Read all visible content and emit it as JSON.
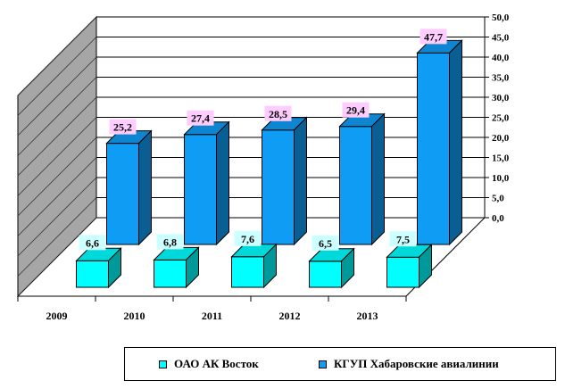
{
  "chart_data": {
    "type": "bar",
    "categories": [
      "2009",
      "2010",
      "2011",
      "2012",
      "2013"
    ],
    "series": [
      {
        "name": "ОАО АК Восток",
        "values": [
          6.6,
          6.8,
          7.6,
          6.5,
          7.5
        ],
        "labels": [
          "6,6",
          "6,8",
          "7,6",
          "6,5",
          "7,5"
        ]
      },
      {
        "name": "КГУП Хабаровские авиалинии",
        "values": [
          25.2,
          27.4,
          28.5,
          29.4,
          47.7
        ],
        "labels": [
          "25,2",
          "27,4",
          "28,5",
          "29,4",
          "47,7"
        ]
      }
    ],
    "ylim": [
      0,
      50
    ],
    "yticks": [
      "0,0",
      "5,0",
      "10,0",
      "15,0",
      "20,0",
      "25,0",
      "30,0",
      "35,0",
      "40,0",
      "45,0",
      "50,0"
    ],
    "grid": true,
    "legend_position": "bottom-right"
  },
  "colors": {
    "series_front": "#00ffff",
    "series_back": "#0f9cf5",
    "wall": "#a6a6a6",
    "data_label_front_bg": "#ccffff",
    "data_label_back_bg": "#ffccff"
  }
}
